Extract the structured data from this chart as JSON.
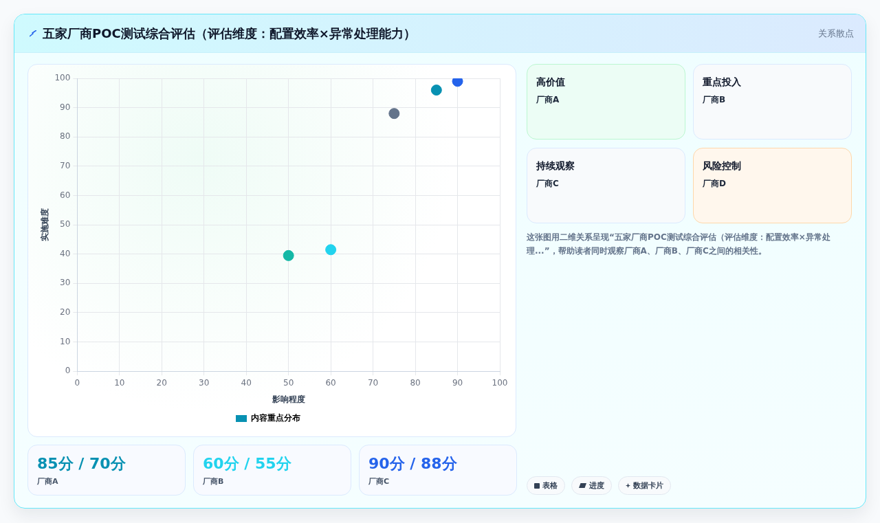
{
  "chart_data": [
    {
      "type": "scatter",
      "title": "五家厂商POC测试综合评估（评估维度：配置效率×异常处理能力）",
      "xlabel": "影响程度",
      "ylabel": "实施难度",
      "annotations": [
        "关系散点"
      ],
      "xlim": [
        0,
        100
      ],
      "xticks": [
        0,
        10,
        20,
        30,
        40,
        50,
        60,
        70,
        80,
        90,
        100
      ],
      "ylim": [
        0,
        100
      ],
      "yticks": [
        0,
        10,
        20,
        30,
        40,
        50,
        60,
        70,
        80,
        90,
        100
      ],
      "grid": true,
      "legend": "bottom",
      "marker": "circle",
      "series": [
        {
          "name": "内容重点分布",
          "color": "#0891b2",
          "colors": [
            "#14b8a6",
            "#22d3ee",
            "#64748b",
            "#0891b2",
            "#2563eb"
          ],
          "x": [
            50,
            60,
            75,
            85,
            90
          ],
          "values": [
            39.5,
            41.5,
            88,
            96,
            99
          ]
        }
      ]
    },
    {
      "type": "other",
      "annotations": [
        "高价值",
        "厂商A",
        "重点投入",
        "厂商B",
        "持续观察",
        "厂商C",
        "风险控制",
        "厂商D",
        "这张图用二维关系呈现“五家厂商POC测试综合评估（评估维度：配置效率×异常处理...”，帮助读者同时观察厂商A、厂商B、厂商C之间的相关性。",
        "表格",
        "进度",
        "数据卡片"
      ]
    },
    {
      "type": "other",
      "annotations": [
        "85分 / 70分",
        "厂商A",
        "60分 / 55分",
        "厂商B",
        "90分 / 88分",
        "厂商C"
      ],
      "colors": [
        "#0891b2",
        "#22d3ee",
        "#2563eb"
      ]
    }
  ]
}
